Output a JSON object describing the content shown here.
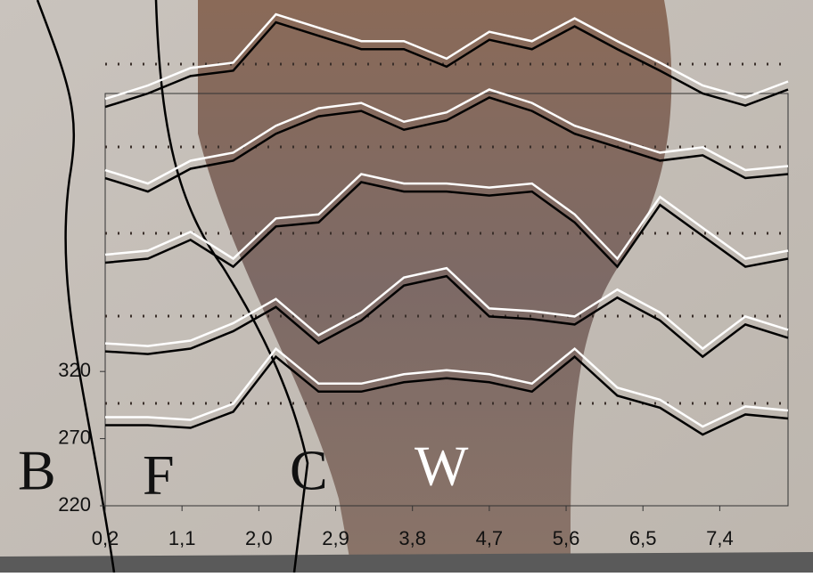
{
  "chart_data": {
    "type": "line",
    "x": [
      0.2,
      0.7,
      1.2,
      1.7,
      2.2,
      2.7,
      3.2,
      3.7,
      4.2,
      4.7,
      5.2,
      5.7,
      6.2,
      6.7,
      7.2,
      7.7,
      8.2
    ],
    "series": [
      {
        "color": "#000000",
        "values": [
          280,
          280,
          278,
          290,
          331,
          305,
          305,
          312,
          315,
          312,
          305,
          331,
          302,
          293,
          273,
          288,
          285
        ]
      },
      {
        "color": "#000000",
        "values": [
          335,
          333,
          337,
          350,
          368,
          341,
          358,
          384,
          391,
          361,
          359,
          355,
          375,
          358,
          331,
          355,
          345
        ]
      },
      {
        "color": "#000000",
        "values": [
          401,
          404,
          418,
          398,
          428,
          431,
          461,
          454,
          454,
          451,
          454,
          431,
          398,
          444,
          421,
          398,
          404
        ]
      },
      {
        "color": "#000000",
        "values": [
          464,
          454,
          471,
          477,
          497,
          510,
          514,
          500,
          507,
          524,
          514,
          497,
          487,
          477,
          481,
          464,
          467
        ]
      },
      {
        "color": "#000000",
        "values": [
          517,
          527,
          540,
          544,
          580,
          570,
          560,
          560,
          547,
          567,
          560,
          577,
          560,
          544,
          527,
          518,
          530
        ]
      }
    ],
    "xlim": [
      0.2,
      8.2
    ],
    "ylim": [
      220,
      590
    ],
    "xticks": [
      {
        "value": 0.2,
        "label": "0,2"
      },
      {
        "value": 1.1,
        "label": "1,1"
      },
      {
        "value": 2.0,
        "label": "2,0"
      },
      {
        "value": 2.9,
        "label": "2,9"
      },
      {
        "value": 3.8,
        "label": "3,8"
      },
      {
        "value": 4.7,
        "label": "4,7"
      },
      {
        "value": 5.6,
        "label": "5,6"
      },
      {
        "value": 6.5,
        "label": "6,5"
      },
      {
        "value": 7.4,
        "label": "7,4"
      }
    ],
    "yticks": [
      220,
      270,
      320
    ],
    "annotations": [
      "B",
      "F",
      "C",
      "W"
    ]
  }
}
